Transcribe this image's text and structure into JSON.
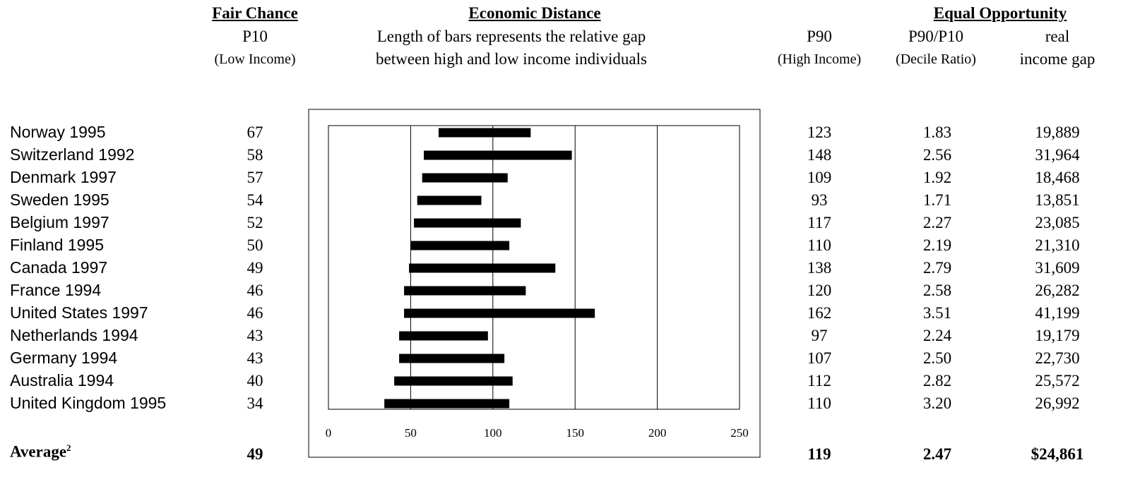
{
  "headers": {
    "fair_chance": "Fair Chance",
    "economic_distance": "Economic Distance",
    "equal_opportunity": "Equal Opportunity"
  },
  "subheaders": {
    "p10": "P10",
    "p10_sub": "(Low Income)",
    "bars_desc_line1": "Length of bars represents the relative gap",
    "bars_desc_line2": "between high and low income individuals",
    "p90": "P90",
    "p90_sub": "(High Income)",
    "ratio": "P90/P10",
    "ratio_sub": "(Decile Ratio)",
    "gap": "real",
    "gap_sub": "income gap"
  },
  "average": {
    "label": "Average",
    "footnote": "2",
    "p10": "49",
    "p90": "119",
    "ratio": "2.47",
    "gap": "$24,861"
  },
  "chart_data": {
    "type": "bar",
    "subtype": "floating-range",
    "xlim": [
      0,
      250
    ],
    "xticks": [
      0,
      50,
      100,
      150,
      200,
      250
    ],
    "grid": true,
    "rows": [
      {
        "label": "Norway 1995",
        "p10": 67,
        "p90": 123,
        "ratio": "1.83",
        "gap": "19,889"
      },
      {
        "label": "Switzerland 1992",
        "p10": 58,
        "p90": 148,
        "ratio": "2.56",
        "gap": "31,964"
      },
      {
        "label": "Denmark 1997",
        "p10": 57,
        "p90": 109,
        "ratio": "1.92",
        "gap": "18,468"
      },
      {
        "label": "Sweden 1995",
        "p10": 54,
        "p90": 93,
        "ratio": "1.71",
        "gap": "13,851"
      },
      {
        "label": "Belgium 1997",
        "p10": 52,
        "p90": 117,
        "ratio": "2.27",
        "gap": "23,085"
      },
      {
        "label": "Finland 1995",
        "p10": 50,
        "p90": 110,
        "ratio": "2.19",
        "gap": "21,310"
      },
      {
        "label": "Canada 1997",
        "p10": 49,
        "p90": 138,
        "ratio": "2.79",
        "gap": "31,609"
      },
      {
        "label": "France 1994",
        "p10": 46,
        "p90": 120,
        "ratio": "2.58",
        "gap": "26,282"
      },
      {
        "label": "United States 1997",
        "p10": 46,
        "p90": 162,
        "ratio": "3.51",
        "gap": "41,199"
      },
      {
        "label": "Netherlands 1994",
        "p10": 43,
        "p90": 97,
        "ratio": "2.24",
        "gap": "19,179"
      },
      {
        "label": "Germany 1994",
        "p10": 43,
        "p90": 107,
        "ratio": "2.50",
        "gap": "22,730"
      },
      {
        "label": "Australia 1994",
        "p10": 40,
        "p90": 112,
        "ratio": "2.82",
        "gap": "25,572"
      },
      {
        "label": "United Kingdom 1995",
        "p10": 34,
        "p90": 110,
        "ratio": "3.20",
        "gap": "26,992"
      }
    ]
  }
}
